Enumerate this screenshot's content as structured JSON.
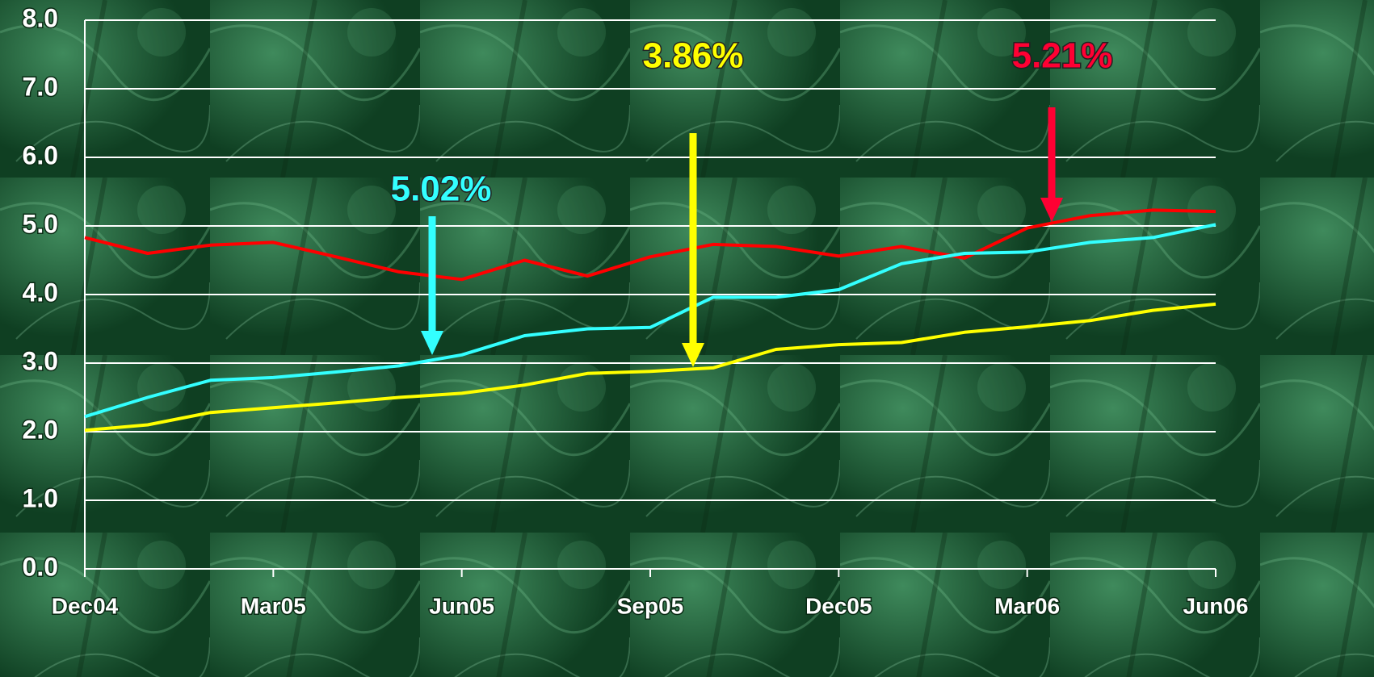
{
  "chart_data": {
    "type": "line",
    "categories": [
      "Dec04",
      null,
      null,
      "Mar05",
      null,
      null,
      "Jun05",
      null,
      null,
      "Sep05",
      null,
      null,
      "Dec05",
      null,
      null,
      "Mar06",
      null,
      null,
      "Jun06"
    ],
    "series": [
      {
        "color": "#ff0000",
        "values": [
          4.83,
          4.6,
          4.72,
          4.76,
          4.55,
          4.33,
          4.22,
          4.5,
          4.27,
          4.55,
          4.73,
          4.7,
          4.56,
          4.7,
          4.53,
          4.97,
          5.15,
          5.23,
          5.21
        ]
      },
      {
        "color": "#33ffff",
        "values": [
          2.22,
          2.5,
          2.75,
          2.79,
          2.87,
          2.96,
          3.12,
          3.4,
          3.5,
          3.52,
          3.96,
          3.96,
          4.07,
          4.45,
          4.6,
          4.62,
          4.76,
          4.83,
          5.02
        ]
      },
      {
        "color": "#ffff00",
        "values": [
          2.02,
          2.1,
          2.28,
          2.35,
          2.42,
          2.5,
          2.56,
          2.68,
          2.85,
          2.88,
          2.93,
          3.2,
          3.27,
          3.3,
          3.45,
          3.53,
          3.62,
          3.77,
          3.86
        ]
      }
    ],
    "annotations": [
      {
        "text": "5.02%",
        "color": "#33ffff"
      },
      {
        "text": "3.86%",
        "color": "#ffff00"
      },
      {
        "text": "5.21%",
        "color": "#ff0033"
      }
    ],
    "ylim": [
      0,
      8
    ],
    "yticks": [
      {
        "value": 0,
        "label": "0.0"
      },
      {
        "value": 1,
        "label": "1.0"
      },
      {
        "value": 2,
        "label": "2.0"
      },
      {
        "value": 3,
        "label": "3.0"
      },
      {
        "value": 4,
        "label": "4.0"
      },
      {
        "value": 5,
        "label": "5.0"
      },
      {
        "value": 6,
        "label": "6.0"
      },
      {
        "value": 7,
        "label": "7.0"
      },
      {
        "value": 8,
        "label": "8.0"
      }
    ],
    "grid": true
  }
}
